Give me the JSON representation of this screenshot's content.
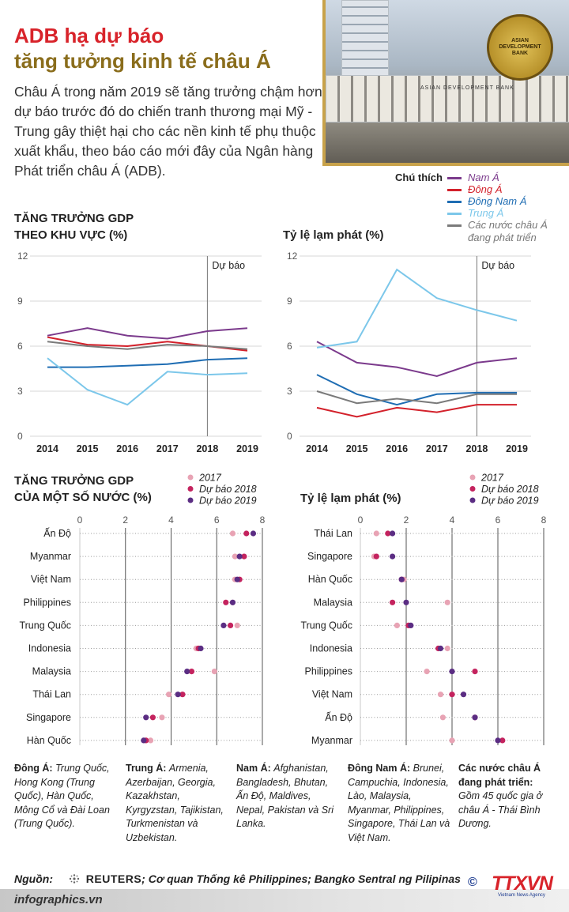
{
  "header": {
    "title_line1": "ADB hạ dự báo",
    "title_line2": "tăng tưởng kinh tế châu Á",
    "intro": "Châu Á trong năm 2019 sẽ tăng trưởng chậm hơn dự báo trước đó do chiến tranh thương mại Mỹ - Trung gây thiệt hại cho các nền kinh tế phụ thuộc xuất khẩu, theo báo cáo mới đây của Ngân hàng Phát triển châu Á (ADB).",
    "photo_sign": "ASIAN DEVELOPMENT BANK",
    "seal_text": "ASIAN DEVELOPMENT BANK"
  },
  "legend": {
    "title": "Chú thích",
    "items": [
      {
        "label": "Nam Á",
        "color": "#7b3a8c"
      },
      {
        "label": "Đông Á",
        "color": "#d3212b"
      },
      {
        "label": "Đông Nam Á",
        "color": "#1f6db3"
      },
      {
        "label": "Trung Á",
        "color": "#7cc7ea"
      },
      {
        "label": "Các nước châu Á đang phát triển",
        "color": "#7a7a7a"
      }
    ]
  },
  "sections": {
    "gdp_region_title": "TĂNG TRƯỞNG GDP\nTHEO KHU VỰC (%)",
    "infl_region_title": "Tỷ lệ lạm phát (%)",
    "gdp_country_title": "TĂNG TRƯỞNG GDP\nCỦA MỘT SỐ NƯỚC (%)",
    "infl_country_title": "Tỷ lệ lạm phát (%)"
  },
  "dot_legend": {
    "items": [
      {
        "label": "2017",
        "color": "#e8a3b4"
      },
      {
        "label": "Dự báo 2018",
        "color": "#c4235e"
      },
      {
        "label": "Dự báo 2019",
        "color": "#5b2d83"
      }
    ]
  },
  "chart_data": [
    {
      "type": "line",
      "title": "TĂNG TRƯỞNG GDP THEO KHU VỰC (%)",
      "x": [
        "2014",
        "2015",
        "2016",
        "2017",
        "2018",
        "2019"
      ],
      "ylim": [
        0,
        12
      ],
      "yticks": [
        "0",
        "3",
        "6",
        "9",
        "12"
      ],
      "annotation": "Dự báo",
      "series": [
        {
          "name": "Nam Á",
          "color": "#7b3a8c",
          "values": [
            6.7,
            7.2,
            6.7,
            6.5,
            7.0,
            7.2
          ]
        },
        {
          "name": "Đông Á",
          "color": "#d3212b",
          "values": [
            6.6,
            6.1,
            6.0,
            6.3,
            6.0,
            5.7
          ]
        },
        {
          "name": "Đông Nam Á",
          "color": "#1f6db3",
          "values": [
            4.6,
            4.6,
            4.7,
            4.8,
            5.1,
            5.2
          ]
        },
        {
          "name": "Trung Á",
          "color": "#7cc7ea",
          "values": [
            5.2,
            3.1,
            2.1,
            4.3,
            4.1,
            4.2
          ]
        },
        {
          "name": "Các nước châu Á đang phát triển",
          "color": "#7a7a7a",
          "values": [
            6.3,
            6.0,
            5.8,
            6.1,
            6.0,
            5.8
          ]
        }
      ]
    },
    {
      "type": "line",
      "title": "Tỷ lệ lạm phát (%)",
      "x": [
        "2014",
        "2015",
        "2016",
        "2017",
        "2018",
        "2019"
      ],
      "ylim": [
        0,
        12
      ],
      "yticks": [
        "0",
        "3",
        "6",
        "9",
        "12"
      ],
      "annotation": "Dự báo",
      "series": [
        {
          "name": "Nam Á",
          "color": "#7b3a8c",
          "values": [
            6.3,
            4.9,
            4.6,
            4.0,
            4.9,
            5.2
          ]
        },
        {
          "name": "Đông Á",
          "color": "#d3212b",
          "values": [
            1.9,
            1.3,
            1.9,
            1.6,
            2.1,
            2.1
          ]
        },
        {
          "name": "Đông Nam Á",
          "color": "#1f6db3",
          "values": [
            4.1,
            2.8,
            2.1,
            2.8,
            2.9,
            2.9
          ]
        },
        {
          "name": "Trung Á",
          "color": "#7cc7ea",
          "values": [
            5.9,
            6.3,
            11.1,
            9.2,
            8.4,
            7.7
          ]
        },
        {
          "name": "Các nước châu Á đang phát triển",
          "color": "#7a7a7a",
          "values": [
            3.0,
            2.2,
            2.5,
            2.2,
            2.8,
            2.8
          ]
        }
      ]
    },
    {
      "type": "scatter",
      "title": "TĂNG TRƯỞNG GDP CỦA MỘT SỐ NƯỚC (%)",
      "xlim": [
        0,
        8
      ],
      "xticks": [
        "0",
        "2",
        "4",
        "6",
        "8"
      ],
      "categories": [
        "Ấn Độ",
        "Myanmar",
        "Việt Nam",
        "Philippines",
        "Trung Quốc",
        "Indonesia",
        "Malaysia",
        "Thái Lan",
        "Singapore",
        "Hàn Quốc"
      ],
      "series": [
        {
          "name": "2017",
          "color": "#e8a3b4",
          "values": [
            6.7,
            6.8,
            6.8,
            6.7,
            6.9,
            5.1,
            5.9,
            3.9,
            3.6,
            3.1
          ]
        },
        {
          "name": "Dự báo 2018",
          "color": "#c4235e",
          "values": [
            7.3,
            7.2,
            7.0,
            6.4,
            6.6,
            5.2,
            4.9,
            4.5,
            3.2,
            2.9
          ]
        },
        {
          "name": "Dự báo 2019",
          "color": "#5b2d83",
          "values": [
            7.6,
            7.0,
            6.9,
            6.7,
            6.3,
            5.3,
            4.7,
            4.3,
            2.9,
            2.8
          ]
        }
      ]
    },
    {
      "type": "scatter",
      "title": "Tỷ lệ lạm phát (%)",
      "xlim": [
        0,
        8
      ],
      "xticks": [
        "0",
        "2",
        "4",
        "6",
        "8"
      ],
      "categories": [
        "Thái Lan",
        "Singapore",
        "Hàn Quốc",
        "Malaysia",
        "Trung Quốc",
        "Indonesia",
        "Philippines",
        "Việt Nam",
        "Ấn Độ",
        "Myanmar"
      ],
      "series": [
        {
          "name": "2017",
          "color": "#e8a3b4",
          "values": [
            0.7,
            0.6,
            1.9,
            3.8,
            1.6,
            3.8,
            2.9,
            3.5,
            3.6,
            4.0
          ]
        },
        {
          "name": "Dự báo 2018",
          "color": "#c4235e",
          "values": [
            1.2,
            0.7,
            1.8,
            1.4,
            2.1,
            3.4,
            5.0,
            4.0,
            5.0,
            6.2
          ]
        },
        {
          "name": "Dự báo 2019",
          "color": "#5b2d83",
          "values": [
            1.4,
            1.4,
            1.8,
            2.0,
            2.2,
            3.5,
            4.0,
            4.5,
            5.0,
            6.0
          ]
        }
      ]
    }
  ],
  "footnotes": [
    {
      "head": "Đông Á:",
      "body": "Trung Quốc, Hong Kong (Trung Quốc), Hàn Quốc, Mông Cổ và Đài Loan (Trung Quốc)."
    },
    {
      "head": "Trung Á:",
      "body": "Armenia, Azerbaijan, Georgia, Kazakhstan, Kyrgyzstan, Tajikistan, Turkmenistan và Uzbekistan."
    },
    {
      "head": "Nam Á:",
      "body": "Afghanistan, Bangladesh, Bhutan, Ấn Độ, Maldives, Nepal, Pakistan và Sri Lanka."
    },
    {
      "head": "Đông Nam Á:",
      "body": "Brunei, Campuchia, Indonesia, Lào, Malaysia, Myanmar, Philippines, Singapore, Thái Lan và Việt Nam."
    },
    {
      "head": "Các nước châu Á đang phát triển:",
      "body": "Gồm 45 quốc gia ở châu Á - Thái Bình Dương."
    }
  ],
  "source": {
    "label": "Nguồn:",
    "reuters": "REUTERS",
    "rest": "; Cơ quan Thống kê Philippines; Bangko Sentral ng Pilipinas"
  },
  "footer": {
    "site": "infographics.vn",
    "logo_text": "TTXVN",
    "logo_sub": "Vietnam News Agency",
    "copyright_symbol": "©"
  }
}
